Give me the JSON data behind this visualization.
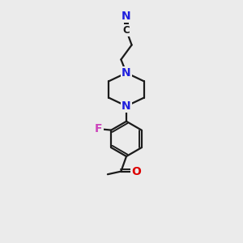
{
  "bg_color": "#ebebeb",
  "bond_color": "#1a1a1a",
  "N_color": "#2020dd",
  "O_color": "#dd0000",
  "F_color": "#cc44bb",
  "line_width": 1.6,
  "font_size_atom": 8.5,
  "fig_size": [
    3.0,
    3.0
  ],
  "dpi": 100,
  "xlim": [
    0,
    10
  ],
  "ylim": [
    0,
    10
  ]
}
